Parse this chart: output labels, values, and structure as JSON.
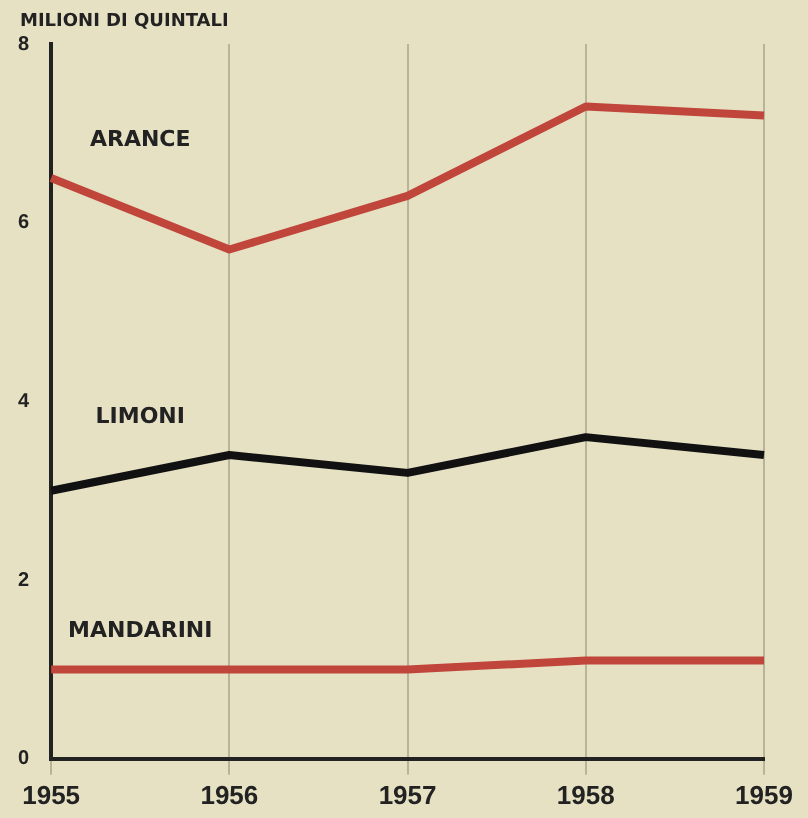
{
  "chart_data": {
    "type": "line",
    "ylabel": "MILIONI DI QUINTALI",
    "categories": [
      "1955",
      "1956",
      "1957",
      "1958",
      "1959"
    ],
    "series": [
      {
        "name": "ARANCE",
        "color": "#c0463c",
        "values": [
          6.5,
          5.7,
          6.3,
          7.3,
          7.2
        ]
      },
      {
        "name": "LIMONI",
        "color": "#111111",
        "values": [
          3.0,
          3.4,
          3.2,
          3.6,
          3.4
        ]
      },
      {
        "name": "MANDARINI",
        "color": "#c0463c",
        "values": [
          1.0,
          1.0,
          1.0,
          1.1,
          1.1
        ]
      }
    ],
    "ylim": [
      0,
      8
    ],
    "yticks": [
      0,
      2,
      4,
      6,
      8
    ],
    "grid": "x",
    "legend": false,
    "marker": "none",
    "line_style": "solid"
  }
}
